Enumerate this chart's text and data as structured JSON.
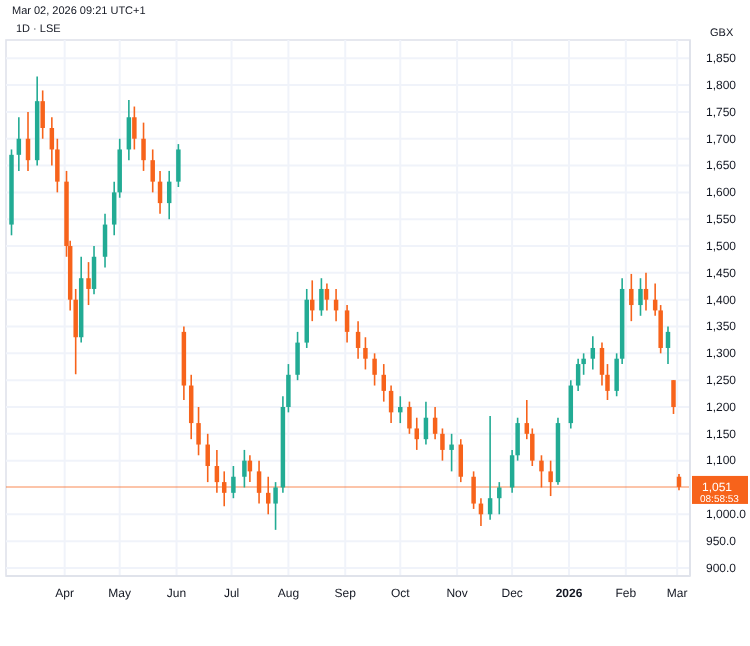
{
  "chart_data": {
    "type": "candlestick",
    "title": "1D · LSE",
    "subtitle": "Mar 02, 2026 09:21 UTC+1",
    "ylabel": "GBX",
    "annotations": [
      "08:58:53"
    ],
    "x": [
      "2025-03-03",
      "2025-03-07",
      "2025-03-12",
      "2025-03-17",
      "2025-03-20",
      "2025-03-25",
      "2025-03-28",
      "2025-04-02",
      "2025-04-04",
      "2025-04-07",
      "2025-04-10",
      "2025-04-14",
      "2025-04-17",
      "2025-04-23",
      "2025-04-28",
      "2025-05-01",
      "2025-05-06",
      "2025-05-09",
      "2025-05-14",
      "2025-05-19",
      "2025-05-23",
      "2025-05-28",
      "2025-06-02",
      "2025-06-05",
      "2025-06-09",
      "2025-06-13",
      "2025-06-18",
      "2025-06-23",
      "2025-06-27",
      "2025-07-02",
      "2025-07-08",
      "2025-07-11",
      "2025-07-16",
      "2025-07-21",
      "2025-07-25",
      "2025-07-29",
      "2025-08-01",
      "2025-08-06",
      "2025-08-11",
      "2025-08-14",
      "2025-08-19",
      "2025-08-22",
      "2025-08-27",
      "2025-09-02",
      "2025-09-08",
      "2025-09-12",
      "2025-09-17",
      "2025-09-22",
      "2025-09-26",
      "2025-10-01",
      "2025-10-06",
      "2025-10-10",
      "2025-10-15",
      "2025-10-20",
      "2025-10-24",
      "2025-10-29",
      "2025-11-03",
      "2025-11-10",
      "2025-11-14",
      "2025-11-19",
      "2025-11-24",
      "2025-12-01",
      "2025-12-04",
      "2025-12-09",
      "2025-12-12",
      "2025-12-17",
      "2025-12-22",
      "2025-12-26",
      "2026-01-02",
      "2026-01-06",
      "2026-01-09",
      "2026-01-14",
      "2026-01-19",
      "2026-01-22",
      "2026-01-27",
      "2026-01-30",
      "2026-02-04",
      "2026-02-09",
      "2026-02-12",
      "2026-02-17",
      "2026-02-20",
      "2026-02-24",
      "2026-02-27",
      "2026-03-02"
    ],
    "ohlc": [
      [
        1540,
        1680,
        1520,
        1670
      ],
      [
        1670,
        1740,
        1640,
        1700
      ],
      [
        1700,
        1750,
        1640,
        1660
      ],
      [
        1660,
        1816,
        1650,
        1770
      ],
      [
        1770,
        1790,
        1700,
        1720
      ],
      [
        1720,
        1740,
        1650,
        1680
      ],
      [
        1680,
        1700,
        1600,
        1620
      ],
      [
        1620,
        1640,
        1480,
        1500
      ],
      [
        1500,
        1510,
        1380,
        1400
      ],
      [
        1400,
        1420,
        1261,
        1330
      ],
      [
        1330,
        1480,
        1320,
        1440
      ],
      [
        1440,
        1470,
        1390,
        1420
      ],
      [
        1420,
        1500,
        1410,
        1480
      ],
      [
        1480,
        1560,
        1460,
        1540
      ],
      [
        1540,
        1620,
        1520,
        1600
      ],
      [
        1600,
        1700,
        1590,
        1680
      ],
      [
        1680,
        1772,
        1660,
        1740
      ],
      [
        1740,
        1760,
        1680,
        1700
      ],
      [
        1700,
        1730,
        1640,
        1660
      ],
      [
        1660,
        1680,
        1600,
        1620
      ],
      [
        1620,
        1640,
        1560,
        1580
      ],
      [
        1580,
        1640,
        1550,
        1620
      ],
      [
        1620,
        1690,
        1610,
        1680
      ],
      [
        1340,
        1350,
        1213,
        1240
      ],
      [
        1240,
        1260,
        1140,
        1170
      ],
      [
        1170,
        1200,
        1110,
        1130
      ],
      [
        1130,
        1150,
        1060,
        1090
      ],
      [
        1090,
        1120,
        1040,
        1060
      ],
      [
        1060,
        1080,
        1015,
        1040
      ],
      [
        1040,
        1090,
        1030,
        1070
      ],
      [
        1070,
        1120,
        1050,
        1100
      ],
      [
        1100,
        1110,
        1060,
        1080
      ],
      [
        1080,
        1100,
        1020,
        1040
      ],
      [
        1040,
        1070,
        1000,
        1020
      ],
      [
        1020,
        1060,
        971,
        1050
      ],
      [
        1050,
        1220,
        1040,
        1200
      ],
      [
        1200,
        1280,
        1190,
        1260
      ],
      [
        1260,
        1340,
        1250,
        1320
      ],
      [
        1320,
        1420,
        1310,
        1400
      ],
      [
        1400,
        1436,
        1360,
        1380
      ],
      [
        1380,
        1440,
        1370,
        1420
      ],
      [
        1420,
        1430,
        1380,
        1400
      ],
      [
        1400,
        1420,
        1360,
        1380
      ],
      [
        1380,
        1390,
        1320,
        1340
      ],
      [
        1340,
        1360,
        1290,
        1310
      ],
      [
        1310,
        1330,
        1270,
        1290
      ],
      [
        1290,
        1300,
        1240,
        1260
      ],
      [
        1260,
        1280,
        1210,
        1230
      ],
      [
        1230,
        1240,
        1170,
        1190
      ],
      [
        1190,
        1220,
        1170,
        1200
      ],
      [
        1200,
        1210,
        1150,
        1160
      ],
      [
        1160,
        1180,
        1120,
        1140
      ],
      [
        1140,
        1210,
        1130,
        1180
      ],
      [
        1180,
        1200,
        1140,
        1150
      ],
      [
        1150,
        1160,
        1100,
        1120
      ],
      [
        1120,
        1150,
        1080,
        1130
      ],
      [
        1130,
        1140,
        1060,
        1070
      ],
      [
        1070,
        1080,
        1010,
        1020
      ],
      [
        1020,
        1030,
        978,
        1000
      ],
      [
        1000,
        1183,
        990,
        1030
      ],
      [
        1030,
        1060,
        1000,
        1050
      ],
      [
        1050,
        1120,
        1040,
        1110
      ],
      [
        1110,
        1180,
        1100,
        1170
      ],
      [
        1170,
        1213,
        1140,
        1150
      ],
      [
        1150,
        1160,
        1090,
        1100
      ],
      [
        1100,
        1110,
        1050,
        1080
      ],
      [
        1080,
        1100,
        1034,
        1060
      ],
      [
        1060,
        1180,
        1055,
        1170
      ],
      [
        1170,
        1250,
        1160,
        1240
      ],
      [
        1240,
        1290,
        1230,
        1280
      ],
      [
        1280,
        1300,
        1260,
        1290
      ],
      [
        1290,
        1332,
        1270,
        1310
      ],
      [
        1310,
        1320,
        1240,
        1260
      ],
      [
        1260,
        1280,
        1213,
        1230
      ],
      [
        1230,
        1300,
        1220,
        1290
      ],
      [
        1290,
        1440,
        1280,
        1420
      ],
      [
        1420,
        1448,
        1360,
        1390
      ],
      [
        1390,
        1440,
        1370,
        1420
      ],
      [
        1420,
        1450,
        1380,
        1400
      ],
      [
        1400,
        1430,
        1370,
        1380
      ],
      [
        1380,
        1390,
        1300,
        1310
      ],
      [
        1310,
        1350,
        1280,
        1340
      ],
      [
        1250,
        1250,
        1187,
        1200
      ],
      [
        1070,
        1075,
        1045,
        1051
      ]
    ],
    "colors": [
      "#22ab94",
      "#22ab94",
      "#f7631b",
      "#22ab94",
      "#f7631b",
      "#f7631b",
      "#f7631b",
      "#f7631b",
      "#f7631b",
      "#f7631b",
      "#22ab94",
      "#f7631b",
      "#22ab94",
      "#22ab94",
      "#22ab94",
      "#22ab94",
      "#22ab94",
      "#f7631b",
      "#f7631b",
      "#f7631b",
      "#f7631b",
      "#22ab94",
      "#22ab94",
      "#f7631b",
      "#f7631b",
      "#f7631b",
      "#f7631b",
      "#f7631b",
      "#f7631b",
      "#22ab94",
      "#22ab94",
      "#f7631b",
      "#f7631b",
      "#f7631b",
      "#22ab94",
      "#22ab94",
      "#22ab94",
      "#22ab94",
      "#22ab94",
      "#f7631b",
      "#22ab94",
      "#f7631b",
      "#f7631b",
      "#f7631b",
      "#f7631b",
      "#f7631b",
      "#f7631b",
      "#f7631b",
      "#f7631b",
      "#22ab94",
      "#f7631b",
      "#f7631b",
      "#22ab94",
      "#f7631b",
      "#f7631b",
      "#22ab94",
      "#f7631b",
      "#f7631b",
      "#f7631b",
      "#22ab94",
      "#22ab94",
      "#22ab94",
      "#22ab94",
      "#f7631b",
      "#f7631b",
      "#f7631b",
      "#f7631b",
      "#22ab94",
      "#22ab94",
      "#22ab94",
      "#22ab94",
      "#22ab94",
      "#f7631b",
      "#f7631b",
      "#22ab94",
      "#22ab94",
      "#f7631b",
      "#22ab94",
      "#f7631b",
      "#f7631b",
      "#f7631b",
      "#22ab94",
      "#f7631b",
      "#f7631b"
    ],
    "xlim": [
      "2025-02-28",
      "2026-03-08"
    ],
    "xticks": [
      {
        "value": "2025-04-01",
        "label": "Apr"
      },
      {
        "value": "2025-05-01",
        "label": "May"
      },
      {
        "value": "2025-06-01",
        "label": "Jun"
      },
      {
        "value": "2025-07-01",
        "label": "Jul"
      },
      {
        "value": "2025-08-01",
        "label": "Aug"
      },
      {
        "value": "2025-09-01",
        "label": "Sep"
      },
      {
        "value": "2025-10-01",
        "label": "Oct"
      },
      {
        "value": "2025-11-01",
        "label": "Nov"
      },
      {
        "value": "2025-12-01",
        "label": "Dec"
      },
      {
        "value": "2026-01-01",
        "label": "2026"
      },
      {
        "value": "2026-02-01",
        "label": "Feb"
      },
      {
        "value": "2026-03-01",
        "label": "Mar"
      }
    ],
    "ylim": [
      885,
      1884
    ],
    "yticks": [
      {
        "value": 900,
        "label": "900.0"
      },
      {
        "value": 950,
        "label": "950.0"
      },
      {
        "value": 1000,
        "label": "1,000.0"
      },
      {
        "value": 1100,
        "label": "1,100"
      },
      {
        "value": 1150,
        "label": "1,150"
      },
      {
        "value": 1200,
        "label": "1,200"
      },
      {
        "value": 1250,
        "label": "1,250"
      },
      {
        "value": 1300,
        "label": "1,300"
      },
      {
        "value": 1350,
        "label": "1,350"
      },
      {
        "value": 1400,
        "label": "1,400"
      },
      {
        "value": 1450,
        "label": "1,450"
      },
      {
        "value": 1500,
        "label": "1,500"
      },
      {
        "value": 1550,
        "label": "1,550"
      },
      {
        "value": 1600,
        "label": "1,600"
      },
      {
        "value": 1650,
        "label": "1,650"
      },
      {
        "value": 1700,
        "label": "1,700"
      },
      {
        "value": 1750,
        "label": "1,750"
      },
      {
        "value": 1800,
        "label": "1,800"
      },
      {
        "value": 1850,
        "label": "1,850"
      }
    ],
    "grid": true,
    "ref_lines": [
      {
        "axis": "y",
        "value": 1051,
        "label": "1,051",
        "color": "#f7631b"
      }
    ]
  }
}
